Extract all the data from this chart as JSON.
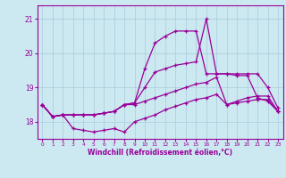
{
  "x": [
    0,
    1,
    2,
    3,
    4,
    5,
    6,
    7,
    8,
    9,
    10,
    11,
    12,
    13,
    14,
    15,
    16,
    17,
    18,
    19,
    20,
    21,
    22,
    23
  ],
  "line_top": [
    18.5,
    18.15,
    18.2,
    18.2,
    18.2,
    18.2,
    18.25,
    18.3,
    18.5,
    18.55,
    19.55,
    20.3,
    20.5,
    20.65,
    20.65,
    20.65,
    19.4,
    19.4,
    19.4,
    19.4,
    19.4,
    19.4,
    19.0,
    18.4
  ],
  "line_upper_mid": [
    18.5,
    18.15,
    18.2,
    18.2,
    18.2,
    18.2,
    18.25,
    18.3,
    18.5,
    18.55,
    19.0,
    19.45,
    19.55,
    19.65,
    19.7,
    19.75,
    21.0,
    19.4,
    19.4,
    19.35,
    19.35,
    18.7,
    18.6,
    18.3
  ],
  "line_lower_mid": [
    18.5,
    18.15,
    18.2,
    18.2,
    18.2,
    18.2,
    18.25,
    18.3,
    18.5,
    18.5,
    18.6,
    18.7,
    18.8,
    18.9,
    19.0,
    19.1,
    19.15,
    19.3,
    18.5,
    18.6,
    18.7,
    18.75,
    18.75,
    18.3
  ],
  "line_bot": [
    18.5,
    18.15,
    18.2,
    17.8,
    17.75,
    17.7,
    17.75,
    17.8,
    17.7,
    18.0,
    18.1,
    18.2,
    18.35,
    18.45,
    18.55,
    18.65,
    18.7,
    18.8,
    18.5,
    18.55,
    18.6,
    18.65,
    18.65,
    18.3
  ],
  "xlabel": "Windchill (Refroidissement éolien,°C)",
  "ylim": [
    17.5,
    21.4
  ],
  "xlim": [
    -0.5,
    23.5
  ],
  "yticks": [
    18,
    19,
    20,
    21
  ],
  "xticks": [
    0,
    1,
    2,
    3,
    4,
    5,
    6,
    7,
    8,
    9,
    10,
    11,
    12,
    13,
    14,
    15,
    16,
    17,
    18,
    19,
    20,
    21,
    22,
    23
  ],
  "line_color": "#990099",
  "bg_color": "#cce8f0",
  "grid_color": "#aaccdd"
}
